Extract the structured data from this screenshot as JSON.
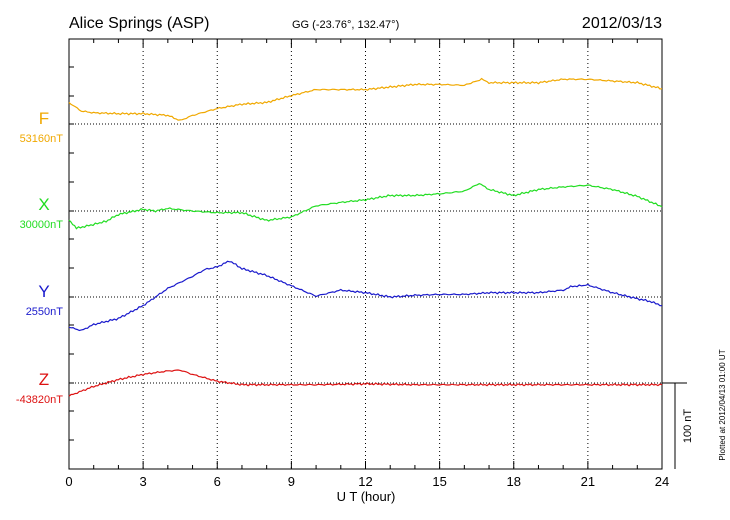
{
  "header": {
    "station": "Alice Springs (ASP)",
    "coords": "GG (-23.76°, 132.47°)",
    "date": "2012/03/13"
  },
  "footer_note": "Plotted at 2012/04/13 01:00 UT",
  "scale_bar_label": "100 nT",
  "chart_data": {
    "type": "line",
    "xlabel": "U T (hour)",
    "xlim": [
      0,
      24
    ],
    "xticks": [
      "0",
      "3",
      "6",
      "9",
      "12",
      "15",
      "18",
      "21",
      "24"
    ],
    "grid": true,
    "scale_nT_per_bar": 100,
    "series": [
      {
        "name": "F",
        "baseline_label": "53160nT",
        "baseline_nT": 53160,
        "color": "#f0a800",
        "x": [
          0,
          0.5,
          1,
          2,
          3,
          4,
          4.5,
          5,
          6,
          7,
          8,
          9,
          10,
          11,
          12,
          13,
          14,
          15,
          16,
          16.7,
          17,
          18,
          19,
          20,
          21,
          22,
          23,
          24
        ],
        "values": [
          53185,
          53175,
          53173,
          53172,
          53172,
          53170,
          53164,
          53170,
          53178,
          53183,
          53185,
          53193,
          53200,
          53200,
          53200,
          53203,
          53206,
          53206,
          53205,
          53212,
          53208,
          53208,
          53208,
          53212,
          53212,
          53210,
          53208,
          53201
        ]
      },
      {
        "name": "X",
        "baseline_label": "30000nT",
        "baseline_nT": 30000,
        "color": "#22dd22",
        "x": [
          0,
          0.3,
          0.8,
          1.5,
          2,
          3,
          3.5,
          4,
          5,
          6,
          7,
          8,
          9,
          10,
          11,
          12,
          13,
          14,
          15,
          16,
          16.6,
          17,
          18,
          19,
          20,
          21,
          22,
          23,
          24
        ],
        "values": [
          29990,
          29980,
          29983,
          29988,
          29996,
          30002,
          30000,
          30003,
          30000,
          29998,
          29998,
          29989,
          29993,
          30006,
          30010,
          30013,
          30018,
          30018,
          30020,
          30023,
          30032,
          30025,
          30018,
          30025,
          30028,
          30030,
          30025,
          30017,
          30005
        ]
      },
      {
        "name": "Y",
        "baseline_label": "2550nT",
        "baseline_nT": 2550,
        "color": "#1a1acc",
        "x": [
          0,
          0.5,
          1,
          2,
          3,
          4,
          5,
          5.5,
          6,
          6.5,
          7,
          8,
          9,
          10,
          11,
          12,
          13,
          14,
          15,
          16,
          17,
          18,
          19,
          20,
          20.3,
          21,
          22,
          23,
          23.5,
          24
        ],
        "values": [
          2515,
          2511,
          2518,
          2525,
          2540,
          2560,
          2574,
          2582,
          2585,
          2592,
          2583,
          2575,
          2563,
          2551,
          2558,
          2555,
          2550,
          2552,
          2553,
          2553,
          2555,
          2555,
          2555,
          2558,
          2562,
          2564,
          2555,
          2548,
          2545,
          2540
        ]
      },
      {
        "name": "Z",
        "baseline_label": "-43820nT",
        "baseline_nT": -43820,
        "color": "#dd1111",
        "x": [
          0,
          1,
          2,
          3,
          4,
          4.5,
          5,
          6,
          7,
          8,
          9,
          10,
          12,
          14,
          16,
          18,
          20,
          22,
          24
        ],
        "values": [
          -43835,
          -43824,
          -43816,
          -43810,
          -43806,
          -43805,
          -43810,
          -43818,
          -43822,
          -43822,
          -43822,
          -43822,
          -43821,
          -43822,
          -43822,
          -43822,
          -43822,
          -43822,
          -43822
        ]
      }
    ]
  }
}
